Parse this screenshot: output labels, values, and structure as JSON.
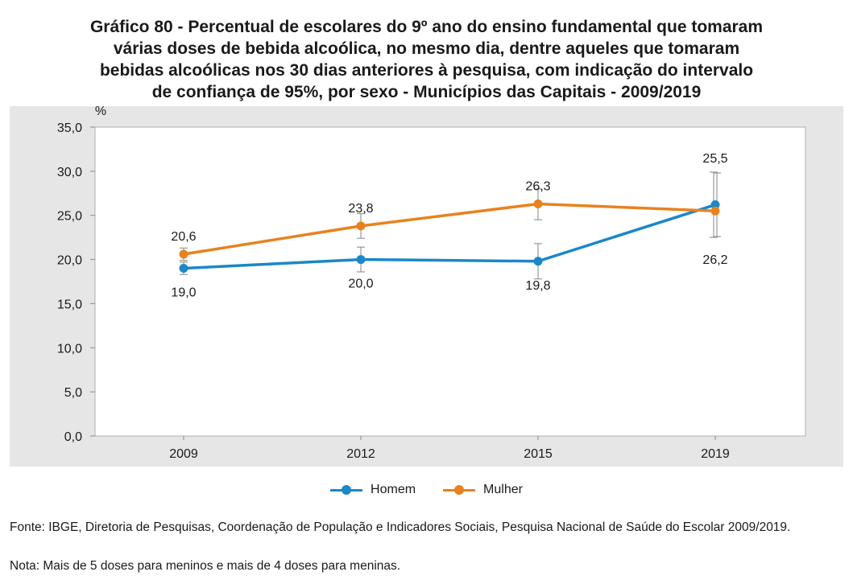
{
  "title_lines": [
    "Gráfico 80 - Percentual de escolares do 9º ano do ensino fundamental que tomaram",
    "várias doses de bebida alcoólica, no mesmo dia, dentre aqueles que tomaram",
    "bebidas alcoólicas nos 30 dias anteriores à pesquisa, com indicação do intervalo",
    "de confiança de 95%, por sexo - Municípios das Capitais - 2009/2019"
  ],
  "footer": {
    "source": "Fonte: IBGE, Diretoria de Pesquisas, Coordenação de População e Indicadores Sociais, Pesquisa Nacional de Saúde do Escolar 2009/2019.",
    "note": "Nota: Mais de 5 doses para meninos e mais de 4 doses para meninas."
  },
  "chart_data": {
    "type": "line",
    "title": "Gráfico 80 - Percentual de escolares do 9º ano do ensino fundamental que tomaram várias doses de bebida alcoólica, no mesmo dia, dentre aqueles que tomaram bebidas alcoólicas nos 30 dias anteriores à pesquisa, com indicação do intervalo de confiança de 95%, por sexo - Municípios das Capitais - 2009/2019",
    "ylabel": "%",
    "xlabel": "",
    "categories": [
      "2009",
      "2012",
      "2015",
      "2019"
    ],
    "ylim": [
      0,
      35
    ],
    "yticks": [
      0,
      5,
      10,
      15,
      20,
      25,
      30,
      35
    ],
    "ytick_labels": [
      "0,0",
      "5,0",
      "10,0",
      "15,0",
      "20,0",
      "25,0",
      "30,0",
      "35,0"
    ],
    "grid": false,
    "legend_position": "bottom-center",
    "series": [
      {
        "name": "Homem",
        "color": "#1b87c8",
        "values": [
          19.0,
          20.0,
          19.8,
          26.2
        ],
        "labels": [
          "19,0",
          "20,0",
          "19,8",
          "26,2"
        ],
        "ci_low": [
          18.3,
          18.6,
          17.8,
          22.5
        ],
        "ci_high": [
          19.7,
          21.4,
          21.8,
          29.9
        ]
      },
      {
        "name": "Mulher",
        "color": "#e8821e",
        "values": [
          20.6,
          23.8,
          26.3,
          25.5
        ],
        "labels": [
          "20,6",
          "23,8",
          "26,3",
          "25,5"
        ],
        "ci_low": [
          19.9,
          22.4,
          24.5,
          22.6
        ],
        "ci_high": [
          21.3,
          25.2,
          28.0,
          29.8
        ]
      }
    ]
  }
}
